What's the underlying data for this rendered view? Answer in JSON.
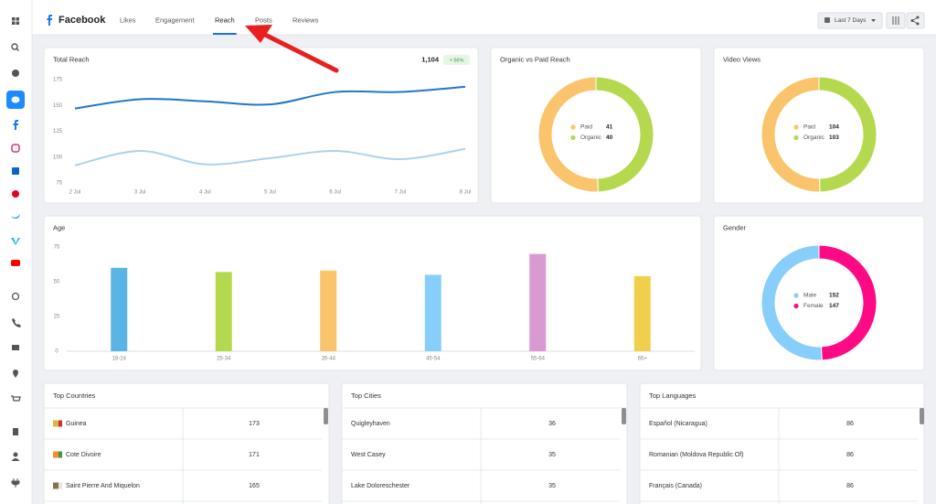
{
  "header": {
    "title": "Facebook",
    "tabs": [
      "Likes",
      "Engagement",
      "Reach",
      "Posts",
      "Reviews"
    ],
    "active_tab": 2,
    "date_range": "Last 7 Days"
  },
  "chart_data": [
    {
      "type": "line",
      "title": "Total Reach",
      "total": "1,104",
      "change": "+ 56%",
      "categories": [
        "2 Jul",
        "3 Jul",
        "4 Jul",
        "5 Jul",
        "6 Jul",
        "7 Jul",
        "8 Jul"
      ],
      "series": [
        {
          "color": "#1f77c9",
          "values": [
            147,
            156,
            154,
            151,
            163,
            163,
            168
          ]
        },
        {
          "color": "#a9d3f0",
          "values": [
            92,
            106,
            93,
            99,
            106,
            98,
            108
          ]
        }
      ],
      "ylim": [
        75,
        175
      ],
      "yticks": [
        75,
        100,
        125,
        150,
        175
      ],
      "grid": false
    },
    {
      "type": "donut",
      "title": "Organic vs Paid Reach",
      "categories": [
        "Paid",
        "Organic"
      ],
      "values": [
        41,
        40
      ],
      "colors": [
        "#f9c46b",
        "#b5d94e"
      ]
    },
    {
      "type": "donut",
      "title": "Video Views",
      "categories": [
        "Paid",
        "Organic"
      ],
      "values": [
        104,
        103
      ],
      "colors": [
        "#f9c46b",
        "#b5d94e"
      ]
    },
    {
      "type": "bar",
      "title": "Age",
      "categories": [
        "18-24",
        "25-34",
        "35-44",
        "45-54",
        "55-64",
        "65+"
      ],
      "values": [
        60,
        57,
        58,
        55,
        70,
        54
      ],
      "colors": [
        "#5ab4e5",
        "#b5d94e",
        "#f9c46b",
        "#87cefa",
        "#d99ad2",
        "#f0d04a"
      ],
      "ylim": [
        0,
        75
      ],
      "yticks": [
        0,
        25,
        50,
        75
      ],
      "grid": false
    },
    {
      "type": "donut",
      "title": "Gender",
      "categories": [
        "Male",
        "Female"
      ],
      "values": [
        152,
        147
      ],
      "colors": [
        "#87cefa",
        "#ff0a85"
      ]
    }
  ],
  "tables": [
    {
      "title": "Top Countries",
      "rows": [
        [
          "Guinea",
          173
        ],
        [
          "Cote Divoire",
          171
        ],
        [
          "Saint Pierre And Miquelon",
          165
        ]
      ]
    },
    {
      "title": "Top Cities",
      "rows": [
        [
          "Quigleyhaven",
          36
        ],
        [
          "West Casey",
          35
        ],
        [
          "Lake Doloreschester",
          35
        ]
      ]
    },
    {
      "title": "Top Languages",
      "rows": [
        [
          "Español (Nicaragua)",
          86
        ],
        [
          "Romanian (Moldova Republic Of)",
          86
        ],
        [
          "Français (Canada)",
          86
        ]
      ]
    }
  ]
}
